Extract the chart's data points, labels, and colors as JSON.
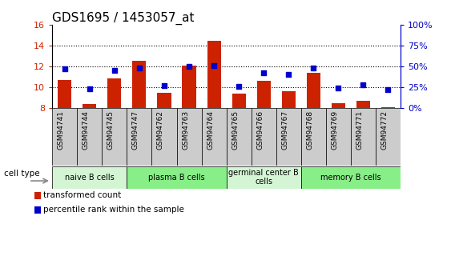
{
  "title": "GDS1695 / 1453057_at",
  "samples": [
    "GSM94741",
    "GSM94744",
    "GSM94745",
    "GSM94747",
    "GSM94762",
    "GSM94763",
    "GSM94764",
    "GSM94765",
    "GSM94766",
    "GSM94767",
    "GSM94768",
    "GSM94769",
    "GSM94771",
    "GSM94772"
  ],
  "bar_values": [
    10.7,
    8.35,
    10.85,
    12.55,
    9.4,
    12.1,
    14.45,
    9.35,
    10.6,
    9.55,
    11.35,
    8.4,
    8.65,
    8.05
  ],
  "percentile_values": [
    47,
    23,
    45,
    48,
    27,
    50,
    51,
    26,
    42,
    40,
    48,
    24,
    28,
    22
  ],
  "bar_color": "#cc2200",
  "dot_color": "#0000cc",
  "ylim_left": [
    8,
    16
  ],
  "ylim_right": [
    0,
    100
  ],
  "yticks_left": [
    8,
    10,
    12,
    14,
    16
  ],
  "yticks_right": [
    0,
    25,
    50,
    75,
    100
  ],
  "ytick_labels_right": [
    "0%",
    "25%",
    "50%",
    "75%",
    "100%"
  ],
  "grid_lines": [
    10,
    12,
    14
  ],
  "cell_groups": [
    {
      "label": "naive B cells",
      "start": 0,
      "end": 3,
      "color": "#d4f5d4"
    },
    {
      "label": "plasma B cells",
      "start": 3,
      "end": 7,
      "color": "#88ee88"
    },
    {
      "label": "germinal center B\ncells",
      "start": 7,
      "end": 10,
      "color": "#d4f5d4"
    },
    {
      "label": "memory B cells",
      "start": 10,
      "end": 14,
      "color": "#88ee88"
    }
  ],
  "legend_bar_label": "transformed count",
  "legend_dot_label": "percentile rank within the sample",
  "cell_type_label": "cell type",
  "title_fontsize": 11,
  "tick_fontsize": 8,
  "label_fontsize": 8
}
